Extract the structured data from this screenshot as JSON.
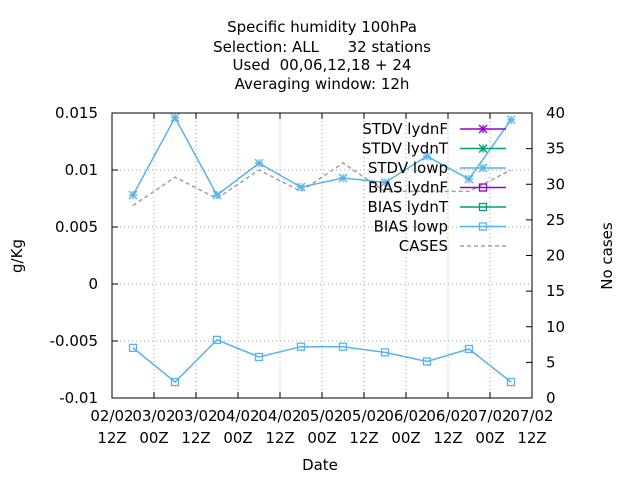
{
  "chart_data": {
    "type": "line",
    "title_lines": [
      "Specific humidity 100hPa",
      "Selection: ALL      32 stations",
      "Used  00,06,12,18 + 24",
      "Averaging window: 12h"
    ],
    "xlabel": "Date",
    "ylabel": "g/Kg",
    "y2label": "No cases",
    "xlim": [
      0,
      10
    ],
    "ylim": [
      -0.01,
      0.015
    ],
    "y2lim": [
      0,
      40
    ],
    "grid": true,
    "legend_position": "top-right",
    "x_ticks": [
      {
        "line1": "02/02",
        "line2": "12Z"
      },
      {
        "line1": "03/02",
        "line2": "00Z"
      },
      {
        "line1": "03/02",
        "line2": "12Z"
      },
      {
        "line1": "04/02",
        "line2": "00Z"
      },
      {
        "line1": "04/02",
        "line2": "12Z"
      },
      {
        "line1": "05/02",
        "line2": "00Z"
      },
      {
        "line1": "05/02",
        "line2": "12Z"
      },
      {
        "line1": "06/02",
        "line2": "00Z"
      },
      {
        "line1": "06/02",
        "line2": "12Z"
      },
      {
        "line1": "07/02",
        "line2": "00Z"
      },
      {
        "line1": "07/02",
        "line2": "12Z"
      }
    ],
    "y_ticks": [
      "0.015",
      "0.01",
      "0.005",
      "0",
      "-0.005",
      "-0.01"
    ],
    "y_tick_values": [
      0.015,
      0.01,
      0.005,
      0,
      -0.005,
      -0.01
    ],
    "y2_ticks": [
      "40",
      "35",
      "30",
      "25",
      "20",
      "15",
      "10",
      "5",
      "0"
    ],
    "y2_tick_values": [
      40,
      35,
      30,
      25,
      20,
      15,
      10,
      5,
      0
    ],
    "x": [
      0.5,
      1.5,
      2.5,
      3.5,
      4.5,
      5.5,
      6.5,
      7.5,
      8.5,
      9.5
    ],
    "series": [
      {
        "name": "STDV lydnF",
        "color": "#9400d3",
        "marker": "star",
        "axis": "y",
        "visible": false,
        "values": [
          0.0078,
          0.0146,
          0.0078,
          0.0106,
          0.0085,
          0.0093,
          0.0089,
          0.0112,
          0.0092,
          0.0144
        ]
      },
      {
        "name": "STDV lydnT",
        "color": "#009e73",
        "marker": "star",
        "axis": "y",
        "visible": false,
        "values": [
          0.0078,
          0.0146,
          0.0078,
          0.0106,
          0.0085,
          0.0093,
          0.0089,
          0.0112,
          0.0092,
          0.0144
        ]
      },
      {
        "name": "STDV lowp",
        "color": "#56b4e9",
        "marker": "star",
        "axis": "y",
        "visible": true,
        "values": [
          0.0078,
          0.0146,
          0.0078,
          0.0106,
          0.0085,
          0.0093,
          0.0089,
          0.0112,
          0.0092,
          0.0144
        ]
      },
      {
        "name": "BIAS lydnF",
        "color": "#9400d3",
        "marker": "square",
        "axis": "y",
        "visible": false,
        "values": [
          -0.0056,
          -0.0086,
          -0.0049,
          -0.0064,
          -0.0055,
          -0.0055,
          -0.006,
          -0.0068,
          -0.0057,
          -0.0086
        ]
      },
      {
        "name": "BIAS lydnT",
        "color": "#009e73",
        "marker": "square",
        "axis": "y",
        "visible": false,
        "values": [
          -0.0056,
          -0.0086,
          -0.0049,
          -0.0064,
          -0.0055,
          -0.0055,
          -0.006,
          -0.0068,
          -0.0057,
          -0.0086
        ]
      },
      {
        "name": "BIAS lowp",
        "color": "#56b4e9",
        "marker": "square",
        "axis": "y",
        "visible": true,
        "values": [
          -0.0056,
          -0.0086,
          -0.0049,
          -0.0064,
          -0.0055,
          -0.0055,
          -0.006,
          -0.0068,
          -0.0057,
          -0.0086
        ]
      },
      {
        "name": "CASES",
        "color": "#a0a0a0",
        "marker": "none",
        "dashed": true,
        "axis": "y2",
        "visible": true,
        "values": [
          27,
          31,
          28,
          32,
          29,
          33,
          29,
          29,
          29,
          32
        ]
      }
    ]
  }
}
